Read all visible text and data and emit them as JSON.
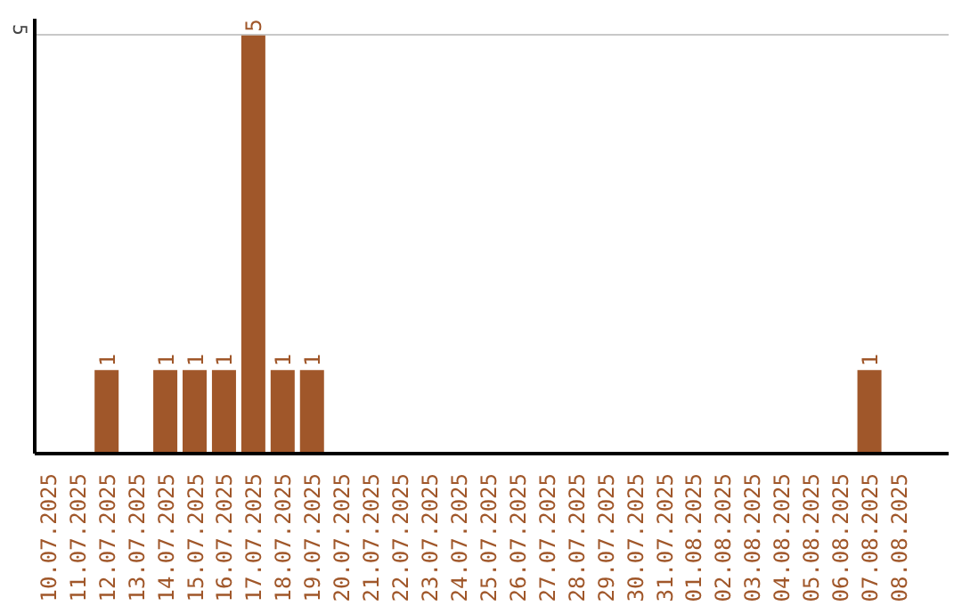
{
  "chart_data": {
    "type": "bar",
    "categories": [
      "10.07.2025",
      "11.07.2025",
      "12.07.2025",
      "13.07.2025",
      "14.07.2025",
      "15.07.2025",
      "16.07.2025",
      "17.07.2025",
      "18.07.2025",
      "19.07.2025",
      "20.07.2025",
      "21.07.2025",
      "22.07.2025",
      "23.07.2025",
      "24.07.2025",
      "25.07.2025",
      "26.07.2025",
      "27.07.2025",
      "28.07.2025",
      "29.07.2025",
      "30.07.2025",
      "31.07.2025",
      "01.08.2025",
      "02.08.2025",
      "03.08.2025",
      "04.08.2025",
      "05.08.2025",
      "06.08.2025",
      "07.08.2025",
      "08.08.2025"
    ],
    "values": [
      0,
      0,
      1,
      0,
      1,
      1,
      1,
      5,
      1,
      1,
      0,
      0,
      0,
      0,
      0,
      0,
      0,
      0,
      0,
      0,
      0,
      0,
      0,
      0,
      0,
      0,
      0,
      0,
      1,
      0
    ],
    "value_labels": [
      null,
      null,
      "1",
      null,
      "1",
      "1",
      "1",
      "5",
      "1",
      "1",
      null,
      null,
      null,
      null,
      null,
      null,
      null,
      null,
      null,
      null,
      null,
      null,
      null,
      null,
      null,
      null,
      null,
      null,
      "1",
      null
    ],
    "color": "#a0572a",
    "ylim": [
      0,
      5.2
    ],
    "yticks": [
      5
    ],
    "grid": "y"
  }
}
